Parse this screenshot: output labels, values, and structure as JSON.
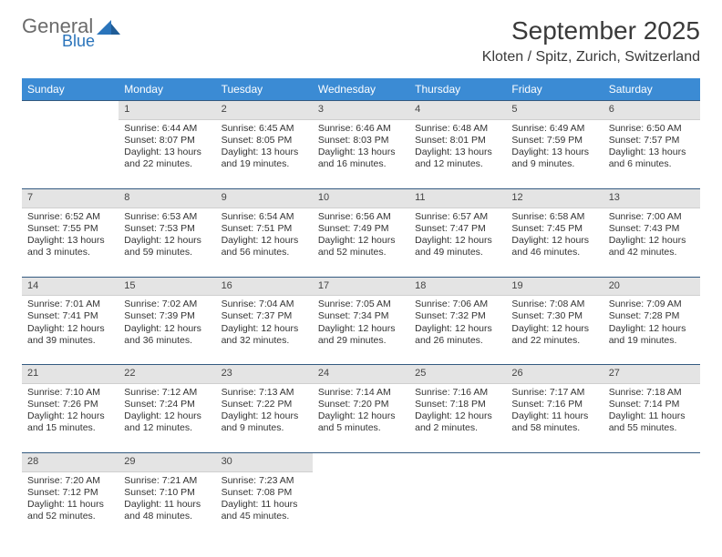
{
  "brand": {
    "general": "General",
    "blue": "Blue"
  },
  "title": "September 2025",
  "location": "Kloten / Spitz, Zurich, Switzerland",
  "columns": [
    "Sunday",
    "Monday",
    "Tuesday",
    "Wednesday",
    "Thursday",
    "Friday",
    "Saturday"
  ],
  "header_bg": "#3b8bd4",
  "header_fg": "#ffffff",
  "daynum_bg": "#e4e4e4",
  "daynum_border_top": "#335a80",
  "weeks": [
    [
      null,
      {
        "n": "1",
        "sr": "Sunrise: 6:44 AM",
        "ss": "Sunset: 8:07 PM",
        "d1": "Daylight: 13 hours",
        "d2": "and 22 minutes."
      },
      {
        "n": "2",
        "sr": "Sunrise: 6:45 AM",
        "ss": "Sunset: 8:05 PM",
        "d1": "Daylight: 13 hours",
        "d2": "and 19 minutes."
      },
      {
        "n": "3",
        "sr": "Sunrise: 6:46 AM",
        "ss": "Sunset: 8:03 PM",
        "d1": "Daylight: 13 hours",
        "d2": "and 16 minutes."
      },
      {
        "n": "4",
        "sr": "Sunrise: 6:48 AM",
        "ss": "Sunset: 8:01 PM",
        "d1": "Daylight: 13 hours",
        "d2": "and 12 minutes."
      },
      {
        "n": "5",
        "sr": "Sunrise: 6:49 AM",
        "ss": "Sunset: 7:59 PM",
        "d1": "Daylight: 13 hours",
        "d2": "and 9 minutes."
      },
      {
        "n": "6",
        "sr": "Sunrise: 6:50 AM",
        "ss": "Sunset: 7:57 PM",
        "d1": "Daylight: 13 hours",
        "d2": "and 6 minutes."
      }
    ],
    [
      {
        "n": "7",
        "sr": "Sunrise: 6:52 AM",
        "ss": "Sunset: 7:55 PM",
        "d1": "Daylight: 13 hours",
        "d2": "and 3 minutes."
      },
      {
        "n": "8",
        "sr": "Sunrise: 6:53 AM",
        "ss": "Sunset: 7:53 PM",
        "d1": "Daylight: 12 hours",
        "d2": "and 59 minutes."
      },
      {
        "n": "9",
        "sr": "Sunrise: 6:54 AM",
        "ss": "Sunset: 7:51 PM",
        "d1": "Daylight: 12 hours",
        "d2": "and 56 minutes."
      },
      {
        "n": "10",
        "sr": "Sunrise: 6:56 AM",
        "ss": "Sunset: 7:49 PM",
        "d1": "Daylight: 12 hours",
        "d2": "and 52 minutes."
      },
      {
        "n": "11",
        "sr": "Sunrise: 6:57 AM",
        "ss": "Sunset: 7:47 PM",
        "d1": "Daylight: 12 hours",
        "d2": "and 49 minutes."
      },
      {
        "n": "12",
        "sr": "Sunrise: 6:58 AM",
        "ss": "Sunset: 7:45 PM",
        "d1": "Daylight: 12 hours",
        "d2": "and 46 minutes."
      },
      {
        "n": "13",
        "sr": "Sunrise: 7:00 AM",
        "ss": "Sunset: 7:43 PM",
        "d1": "Daylight: 12 hours",
        "d2": "and 42 minutes."
      }
    ],
    [
      {
        "n": "14",
        "sr": "Sunrise: 7:01 AM",
        "ss": "Sunset: 7:41 PM",
        "d1": "Daylight: 12 hours",
        "d2": "and 39 minutes."
      },
      {
        "n": "15",
        "sr": "Sunrise: 7:02 AM",
        "ss": "Sunset: 7:39 PM",
        "d1": "Daylight: 12 hours",
        "d2": "and 36 minutes."
      },
      {
        "n": "16",
        "sr": "Sunrise: 7:04 AM",
        "ss": "Sunset: 7:37 PM",
        "d1": "Daylight: 12 hours",
        "d2": "and 32 minutes."
      },
      {
        "n": "17",
        "sr": "Sunrise: 7:05 AM",
        "ss": "Sunset: 7:34 PM",
        "d1": "Daylight: 12 hours",
        "d2": "and 29 minutes."
      },
      {
        "n": "18",
        "sr": "Sunrise: 7:06 AM",
        "ss": "Sunset: 7:32 PM",
        "d1": "Daylight: 12 hours",
        "d2": "and 26 minutes."
      },
      {
        "n": "19",
        "sr": "Sunrise: 7:08 AM",
        "ss": "Sunset: 7:30 PM",
        "d1": "Daylight: 12 hours",
        "d2": "and 22 minutes."
      },
      {
        "n": "20",
        "sr": "Sunrise: 7:09 AM",
        "ss": "Sunset: 7:28 PM",
        "d1": "Daylight: 12 hours",
        "d2": "and 19 minutes."
      }
    ],
    [
      {
        "n": "21",
        "sr": "Sunrise: 7:10 AM",
        "ss": "Sunset: 7:26 PM",
        "d1": "Daylight: 12 hours",
        "d2": "and 15 minutes."
      },
      {
        "n": "22",
        "sr": "Sunrise: 7:12 AM",
        "ss": "Sunset: 7:24 PM",
        "d1": "Daylight: 12 hours",
        "d2": "and 12 minutes."
      },
      {
        "n": "23",
        "sr": "Sunrise: 7:13 AM",
        "ss": "Sunset: 7:22 PM",
        "d1": "Daylight: 12 hours",
        "d2": "and 9 minutes."
      },
      {
        "n": "24",
        "sr": "Sunrise: 7:14 AM",
        "ss": "Sunset: 7:20 PM",
        "d1": "Daylight: 12 hours",
        "d2": "and 5 minutes."
      },
      {
        "n": "25",
        "sr": "Sunrise: 7:16 AM",
        "ss": "Sunset: 7:18 PM",
        "d1": "Daylight: 12 hours",
        "d2": "and 2 minutes."
      },
      {
        "n": "26",
        "sr": "Sunrise: 7:17 AM",
        "ss": "Sunset: 7:16 PM",
        "d1": "Daylight: 11 hours",
        "d2": "and 58 minutes."
      },
      {
        "n": "27",
        "sr": "Sunrise: 7:18 AM",
        "ss": "Sunset: 7:14 PM",
        "d1": "Daylight: 11 hours",
        "d2": "and 55 minutes."
      }
    ],
    [
      {
        "n": "28",
        "sr": "Sunrise: 7:20 AM",
        "ss": "Sunset: 7:12 PM",
        "d1": "Daylight: 11 hours",
        "d2": "and 52 minutes."
      },
      {
        "n": "29",
        "sr": "Sunrise: 7:21 AM",
        "ss": "Sunset: 7:10 PM",
        "d1": "Daylight: 11 hours",
        "d2": "and 48 minutes."
      },
      {
        "n": "30",
        "sr": "Sunrise: 7:23 AM",
        "ss": "Sunset: 7:08 PM",
        "d1": "Daylight: 11 hours",
        "d2": "and 45 minutes."
      },
      null,
      null,
      null,
      null
    ]
  ]
}
